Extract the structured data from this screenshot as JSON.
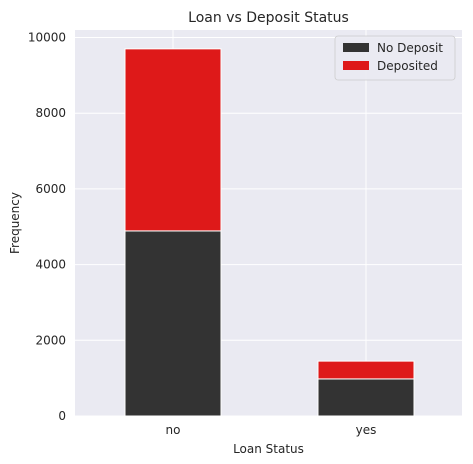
{
  "chart_data": {
    "type": "bar",
    "stacked": true,
    "title": "Loan vs Deposit Status",
    "xlabel": "Loan Status",
    "ylabel": "Frequency",
    "categories": [
      "no",
      "yes"
    ],
    "series": [
      {
        "name": "No Deposit",
        "values": [
          4890,
          980
        ],
        "color": "#333333"
      },
      {
        "name": "Deposited",
        "values": [
          4810,
          470
        ],
        "color": "#de1919"
      }
    ],
    "ylim": [
      0,
      10000
    ],
    "yticks": [
      0,
      2000,
      4000,
      6000,
      8000,
      10000
    ],
    "grid": true,
    "legend_position": "top-right",
    "background": "#eaeaf2"
  }
}
